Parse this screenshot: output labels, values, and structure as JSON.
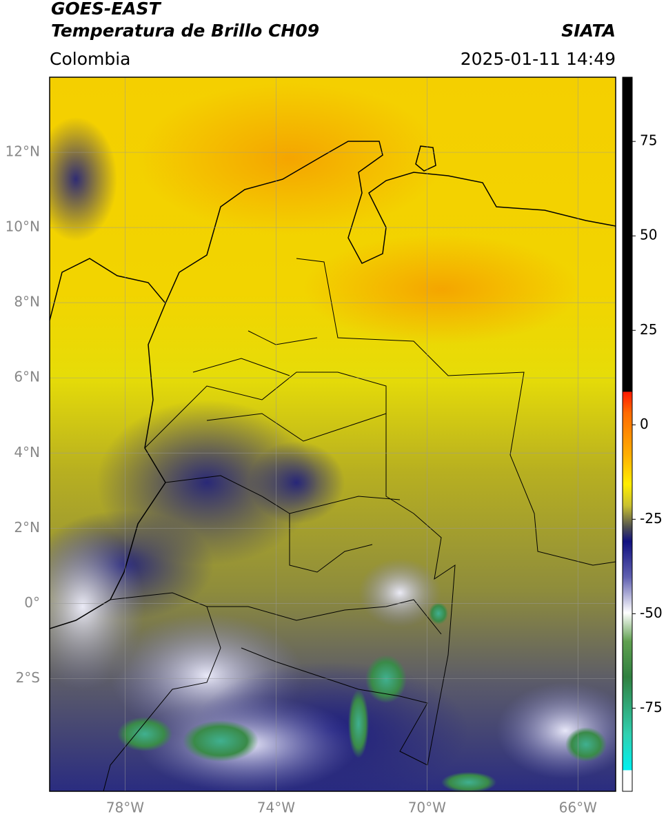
{
  "header": {
    "title": "GOES-EAST",
    "subtitle": "Temperatura de Brillo CH09",
    "source": "SIATA",
    "region": "Colombia",
    "datetime": "2025-01-11 14:49"
  },
  "map": {
    "xlim": [
      -80,
      -65
    ],
    "ylim": [
      -5,
      14
    ],
    "xticks": [
      {
        "value": -78,
        "label": "78°W"
      },
      {
        "value": -74,
        "label": "74°W"
      },
      {
        "value": -70,
        "label": "70°W"
      },
      {
        "value": -66,
        "label": "66°W"
      }
    ],
    "yticks": [
      {
        "value": 12,
        "label": "12°N"
      },
      {
        "value": 10,
        "label": "10°N"
      },
      {
        "value": 8,
        "label": "8°N"
      },
      {
        "value": 6,
        "label": "6°N"
      },
      {
        "value": 4,
        "label": "4°N"
      },
      {
        "value": 2,
        "label": "2°N"
      },
      {
        "value": 0,
        "label": "0°"
      },
      {
        "value": -2,
        "label": "2°S"
      }
    ],
    "grid": true
  },
  "colorbar": {
    "lim": [
      -97,
      92
    ],
    "ticks": [
      75,
      50,
      25,
      0,
      -25,
      -50,
      -75
    ]
  }
}
